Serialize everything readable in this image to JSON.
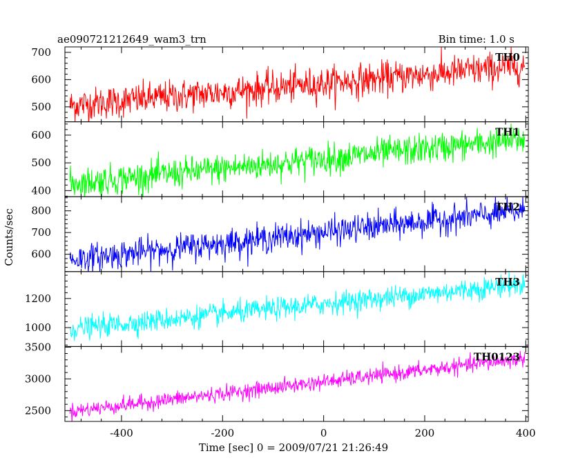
{
  "header": {
    "title": "ae090721212649_wam3_trn",
    "bin_time": "Bin time: 1.0 s"
  },
  "chart_data": {
    "type": "line",
    "ylabel": "Counts/sec",
    "xlabel": "Time [sec] 0 = 2009/07/21 21:26:49",
    "xlim": [
      -512,
      405
    ],
    "xticks": [
      -400,
      -200,
      0,
      200,
      400
    ],
    "x_range": [
      -502,
      398
    ],
    "bin_time_s": 1.0,
    "grid": false,
    "panels": [
      {
        "name": "TH0",
        "color": "#ff0000",
        "ylim": [
          445,
          720
        ],
        "yticks": [
          500,
          600,
          700
        ],
        "trend": {
          "start": 505,
          "end": 650
        },
        "noise": 30
      },
      {
        "name": "TH1",
        "color": "#00ff00",
        "ylim": [
          378,
          648
        ],
        "yticks": [
          400,
          500,
          600
        ],
        "trend": {
          "start": 425,
          "end": 585
        },
        "noise": 27
      },
      {
        "name": "TH2",
        "color": "#0000ff",
        "ylim": [
          520,
          865
        ],
        "yticks": [
          600,
          700,
          800
        ],
        "trend": {
          "start": 575,
          "end": 800
        },
        "noise": 32
      },
      {
        "name": "TH3",
        "color": "#00ffff",
        "ylim": [
          870,
          1385
        ],
        "yticks": [
          1000,
          1200
        ],
        "trend": {
          "start": 990,
          "end": 1300
        },
        "noise": 38
      },
      {
        "name": "TH0123",
        "color": "#ff00ff",
        "ylim": [
          2330,
          3510
        ],
        "yticks": [
          2500,
          3000,
          3500
        ],
        "trend": {
          "start": 2490,
          "end": 3320
        },
        "noise": 60
      }
    ]
  }
}
